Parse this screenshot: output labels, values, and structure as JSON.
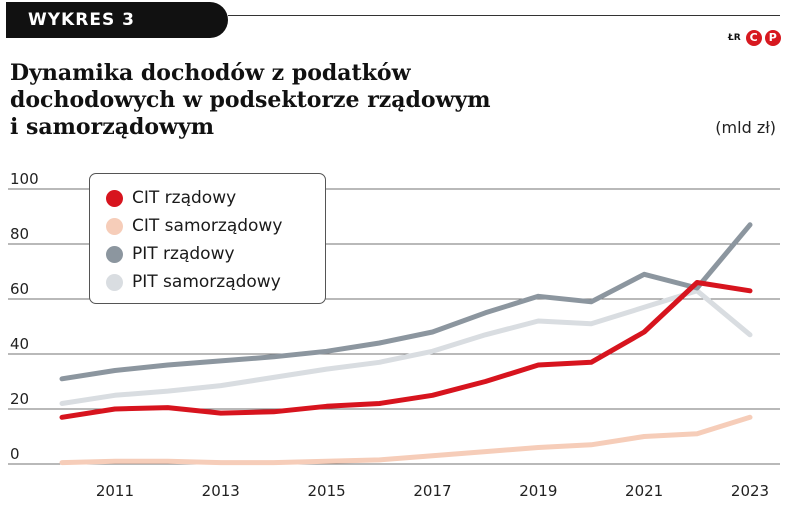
{
  "header": {
    "badge": "WYKRES 3",
    "logo_text": "ŁR",
    "logo_c": "C",
    "logo_p": "P",
    "title_lines": [
      "Dynamika dochodów z podatków",
      "dochodowych w podsektorze rządowym",
      "i samorządowym"
    ],
    "unit": "(mld zł)"
  },
  "colors": {
    "cit_gov": "#d7141e",
    "cit_local": "#f6cdb9",
    "pit_gov": "#8c969f",
    "pit_local": "#d9dde1",
    "grid": "#444444",
    "brand": "#d71920"
  },
  "chart_data": {
    "type": "line",
    "x": [
      2010,
      2011,
      2012,
      2013,
      2014,
      2015,
      2016,
      2017,
      2018,
      2019,
      2020,
      2021,
      2022,
      2023
    ],
    "x_ticks": [
      "2011",
      "2013",
      "2015",
      "2017",
      "2019",
      "2021",
      "2023"
    ],
    "y_ticks": [
      "0",
      "20",
      "40",
      "60",
      "80",
      "100"
    ],
    "ylim": [
      0,
      100
    ],
    "grid": "horizontal",
    "legend_position": "top-left",
    "series": [
      {
        "name": "CIT rządowy",
        "color": "#d7141e",
        "values": [
          17,
          20,
          20.5,
          18.5,
          19,
          21,
          22,
          25,
          30,
          36,
          37,
          48,
          66,
          63
        ]
      },
      {
        "name": "CIT samorządowy",
        "color": "#f6cdb9",
        "values": [
          0.5,
          1,
          1,
          0.5,
          0.5,
          1,
          1.5,
          3,
          4.5,
          6,
          7,
          10,
          11,
          17
        ]
      },
      {
        "name": "PIT rządowy",
        "color": "#8c969f",
        "values": [
          31,
          34,
          36,
          37.5,
          39,
          41,
          44,
          48,
          55,
          61,
          59,
          69,
          64,
          87
        ]
      },
      {
        "name": "PIT samorządowy",
        "color": "#d9dde1",
        "values": [
          22,
          25,
          26.5,
          28.5,
          31.5,
          34.5,
          37,
          41,
          47,
          52,
          51,
          57,
          63,
          47
        ]
      }
    ]
  }
}
